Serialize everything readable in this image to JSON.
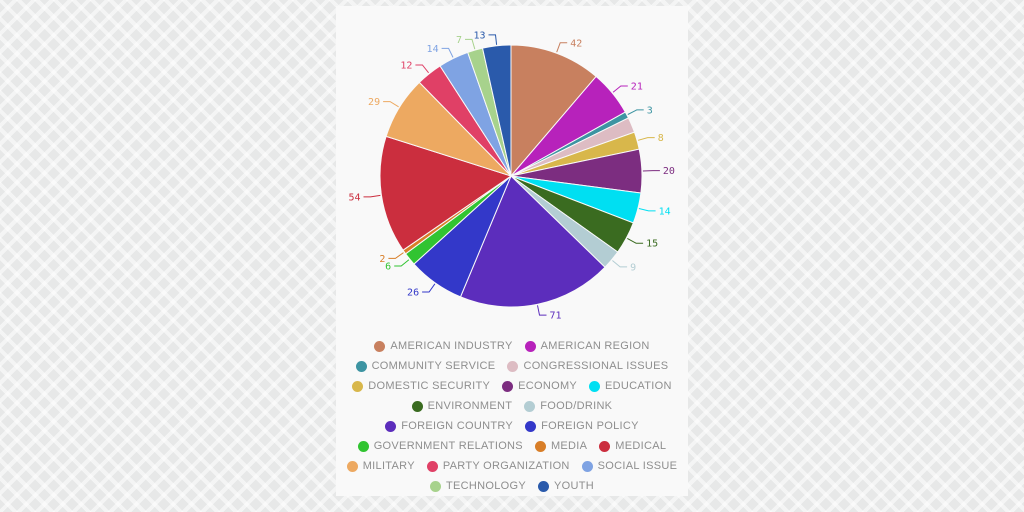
{
  "page": {
    "card_background": "#f9f9f9",
    "page_background": "#e7e8e8",
    "legend_text_color": "#8e8e8e"
  },
  "chart_data": {
    "type": "pie",
    "title": "",
    "legend_position": "bottom",
    "start_angle_deg": 0,
    "series": [
      {
        "name": "AMERICAN INDUSTRY",
        "value": 42,
        "color": "#c8805f"
      },
      {
        "name": "AMERICAN REGION",
        "value": 21,
        "color": "#b722bb"
      },
      {
        "name": "COMMUNITY SERVICE",
        "value": 3,
        "color": "#3d94a2"
      },
      {
        "name": "CONGRESSIONAL ISSUES",
        "value": 7,
        "color": "#ddbcc3",
        "label_hidden": true
      },
      {
        "name": "DOMESTIC SECURITY",
        "value": 8,
        "color": "#d8b74b"
      },
      {
        "name": "ECONOMY",
        "value": 20,
        "color": "#7c2d80"
      },
      {
        "name": "EDUCATION",
        "value": 14,
        "color": "#00dff2"
      },
      {
        "name": "ENVIRONMENT",
        "value": 15,
        "color": "#3a6b20"
      },
      {
        "name": "FOOD/DRINK",
        "value": 9,
        "color": "#b3cdd3"
      },
      {
        "name": "FOREIGN COUNTRY",
        "value": 71,
        "color": "#5c2dbc"
      },
      {
        "name": "FOREIGN POLICY",
        "value": 26,
        "color": "#3338c9"
      },
      {
        "name": "GOVERNMENT RELATIONS",
        "value": 6,
        "color": "#31c431"
      },
      {
        "name": "MEDIA",
        "value": 2,
        "color": "#d87e28"
      },
      {
        "name": "MEDICAL",
        "value": 54,
        "color": "#cb2e3e"
      },
      {
        "name": "MILITARY",
        "value": 29,
        "color": "#eda961"
      },
      {
        "name": "PARTY ORGANIZATION",
        "value": 12,
        "color": "#e04066"
      },
      {
        "name": "SOCIAL ISSUE",
        "value": 14,
        "color": "#7fa3e3"
      },
      {
        "name": "TECHNOLOGY",
        "value": 7,
        "color": "#a7d28c"
      },
      {
        "name": "YOUTH",
        "value": 13,
        "color": "#2a5aab"
      }
    ]
  }
}
